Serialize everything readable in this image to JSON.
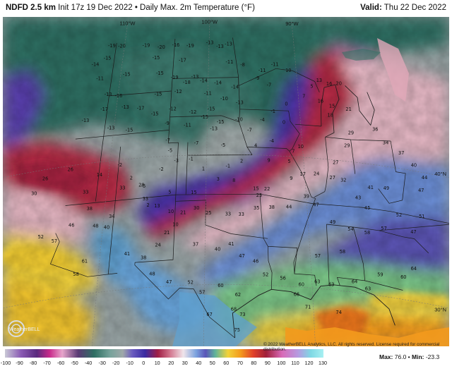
{
  "header": {
    "left_bold": "NDFD 2.5 km",
    "left_rest": " Init 17z 19 Dec 2022 • Daily Max. 2m Temperature (°F)",
    "valid_label": "Valid:",
    "valid_value": " Thu 22 Dec 2022"
  },
  "map": {
    "lon_labels": [
      "110°W",
      "100°W",
      "90°W"
    ],
    "lat_labels": [
      "40°N",
      "30°N"
    ],
    "colors": {
      "frigid_teal": "#2f6f63",
      "cold_gray": "#8e9b99",
      "purple": "#5a3fb0",
      "red": "#b62a45",
      "pink": "#e6b9c6",
      "blue": "#5a8fd6",
      "green": "#7fc98a",
      "yellow": "#f2d23a",
      "orange": "#f39a1d",
      "state_lines": "#222222"
    },
    "temperature_values": [
      {
        "v": "-19",
        "lon": -111.5,
        "lat": 48.7
      },
      {
        "v": "-20",
        "lon": -110.3,
        "lat": 48.6
      },
      {
        "v": "-19",
        "lon": -107.4,
        "lat": 48.5
      },
      {
        "v": "-20",
        "lon": -105.6,
        "lat": 48.3
      },
      {
        "v": "-16",
        "lon": -103.9,
        "lat": 48.4
      },
      {
        "v": "-19",
        "lon": -102.2,
        "lat": 48.3
      },
      {
        "v": "-13",
        "lon": -99.9,
        "lat": 48.5
      },
      {
        "v": "-13",
        "lon": -98.7,
        "lat": 48.2
      },
      {
        "v": "-13",
        "lon": -97.7,
        "lat": 48.4
      },
      {
        "v": "-15",
        "lon": -111.8,
        "lat": 47.8
      },
      {
        "v": "-14",
        "lon": -113.1,
        "lat": 47.4
      },
      {
        "v": "-15",
        "lon": -106.1,
        "lat": 47.5
      },
      {
        "v": "-17",
        "lon": -103.0,
        "lat": 47.2
      },
      {
        "v": "-11",
        "lon": -97.6,
        "lat": 47.0
      },
      {
        "v": "-8",
        "lon": -96.1,
        "lat": 46.8
      },
      {
        "v": "-11",
        "lon": -93.9,
        "lat": 46.4
      },
      {
        "v": "-11",
        "lon": -92.4,
        "lat": 46.9
      },
      {
        "v": "-9",
        "lon": -94.5,
        "lat": 45.8
      },
      {
        "v": "-7",
        "lon": -93.2,
        "lat": 45.3
      },
      {
        "v": "-11",
        "lon": -112.3,
        "lat": 46.3
      },
      {
        "v": "-15",
        "lon": -109.3,
        "lat": 46.4
      },
      {
        "v": "-15",
        "lon": -105.5,
        "lat": 46.3
      },
      {
        "v": "-19",
        "lon": -103.8,
        "lat": 45.9
      },
      {
        "v": "-13",
        "lon": -101.5,
        "lat": 45.9
      },
      {
        "v": "-18",
        "lon": -102.4,
        "lat": 45.5
      },
      {
        "v": "-14",
        "lon": -100.5,
        "lat": 45.6
      },
      {
        "v": "-14",
        "lon": -98.9,
        "lat": 45.4
      },
      {
        "v": "-14",
        "lon": -97.0,
        "lat": 45.1
      },
      {
        "v": "-13",
        "lon": -111.1,
        "lat": 45.0
      },
      {
        "v": "-16",
        "lon": -109.9,
        "lat": 44.8
      },
      {
        "v": "-15",
        "lon": -105.5,
        "lat": 44.7
      },
      {
        "v": "-12",
        "lon": -103.3,
        "lat": 44.8
      },
      {
        "v": "-11",
        "lon": -100.0,
        "lat": 44.6
      },
      {
        "v": "-10",
        "lon": -98.2,
        "lat": 44.2
      },
      {
        "v": "-13",
        "lon": -96.5,
        "lat": 43.9
      },
      {
        "v": "-17",
        "lon": -111.3,
        "lat": 43.9
      },
      {
        "v": "-13",
        "lon": -109.0,
        "lat": 43.9
      },
      {
        "v": "-17",
        "lon": -107.3,
        "lat": 43.7
      },
      {
        "v": "-15",
        "lon": -105.7,
        "lat": 43.2
      },
      {
        "v": "-12",
        "lon": -103.8,
        "lat": 43.5
      },
      {
        "v": "-12",
        "lon": -101.6,
        "lat": 43.2
      },
      {
        "v": "-15",
        "lon": -99.6,
        "lat": 43.4
      },
      {
        "v": "-10",
        "lon": -96.6,
        "lat": 42.6
      },
      {
        "v": "-13",
        "lon": -113.2,
        "lat": 43.2
      },
      {
        "v": "-13",
        "lon": -110.3,
        "lat": 42.4
      },
      {
        "v": "-15",
        "lon": -108.3,
        "lat": 42.1
      },
      {
        "v": "-9",
        "lon": -104.3,
        "lat": 42.4
      },
      {
        "v": "-11",
        "lon": -102.1,
        "lat": 42.2
      },
      {
        "v": "-15",
        "lon": -100.3,
        "lat": 42.8
      },
      {
        "v": "-15",
        "lon": -98.6,
        "lat": 42.4
      },
      {
        "v": "-13",
        "lon": -99.3,
        "lat": 41.9
      },
      {
        "v": "-4",
        "lon": -94.1,
        "lat": 42.6
      },
      {
        "v": "-7",
        "lon": -95.5,
        "lat": 41.8
      },
      {
        "v": "-4",
        "lon": -93.2,
        "lat": 41.0
      },
      {
        "v": "-1",
        "lon": -92.9,
        "lat": 43.3
      },
      {
        "v": "0",
        "lon": -91.4,
        "lat": 43.9
      },
      {
        "v": "0",
        "lon": -91.8,
        "lat": 42.5
      },
      {
        "v": "7",
        "lon": -89.4,
        "lat": 44.6
      },
      {
        "v": "5",
        "lon": -88.4,
        "lat": 45.4
      },
      {
        "v": "10",
        "lon": -90.9,
        "lat": 46.5
      },
      {
        "v": "13",
        "lon": -87.5,
        "lat": 45.9
      },
      {
        "v": "16",
        "lon": -86.4,
        "lat": 45.7
      },
      {
        "v": "20",
        "lon": -85.3,
        "lat": 45.8
      },
      {
        "v": "16",
        "lon": -87.6,
        "lat": 44.3
      },
      {
        "v": "18",
        "lon": -86.7,
        "lat": 43.3
      },
      {
        "v": "15",
        "lon": -86.4,
        "lat": 44.0
      },
      {
        "v": "21",
        "lon": -84.6,
        "lat": 43.9
      },
      {
        "v": "36",
        "lon": -82.0,
        "lat": 42.6
      },
      {
        "v": "29",
        "lon": -84.7,
        "lat": 42.1
      },
      {
        "v": "29",
        "lon": -85.3,
        "lat": 41.1
      },
      {
        "v": "27",
        "lon": -86.7,
        "lat": 39.7
      },
      {
        "v": "7",
        "lon": -91.0,
        "lat": 40.3
      },
      {
        "v": "10",
        "lon": -90.2,
        "lat": 40.7
      },
      {
        "v": "5",
        "lon": -91.5,
        "lat": 39.5
      },
      {
        "v": "9",
        "lon": -91.4,
        "lat": 38.2
      },
      {
        "v": "17",
        "lon": -90.2,
        "lat": 38.6
      },
      {
        "v": "24",
        "lon": -88.8,
        "lat": 38.7
      },
      {
        "v": "27",
        "lon": -87.2,
        "lat": 38.5
      },
      {
        "v": "32",
        "lon": -86.1,
        "lat": 38.4
      },
      {
        "v": "34",
        "lon": -81.1,
        "lat": 41.7
      },
      {
        "v": "37",
        "lon": -79.6,
        "lat": 41.1
      },
      {
        "v": "40",
        "lon": -78.5,
        "lat": 40.3
      },
      {
        "v": "44",
        "lon": -77.6,
        "lat": 39.5
      },
      {
        "v": "47",
        "lon": -78.2,
        "lat": 38.5
      },
      {
        "v": "49",
        "lon": -81.8,
        "lat": 38.2
      },
      {
        "v": "41",
        "lon": -83.4,
        "lat": 38.1
      },
      {
        "v": "43",
        "lon": -84.8,
        "lat": 37.2
      },
      {
        "v": "45",
        "lon": -84.0,
        "lat": 36.5
      },
      {
        "v": "52",
        "lon": -80.9,
        "lat": 36.3
      },
      {
        "v": "51",
        "lon": -78.6,
        "lat": 36.5
      },
      {
        "v": "47",
        "lon": -79.7,
        "lat": 35.2
      },
      {
        "v": "57",
        "lon": -82.6,
        "lat": 35.1
      },
      {
        "v": "58",
        "lon": -84.3,
        "lat": 34.6
      },
      {
        "v": "54",
        "lon": -85.9,
        "lat": 34.7
      },
      {
        "v": "49",
        "lon": -87.6,
        "lat": 35.1
      },
      {
        "v": "47",
        "lon": -89.1,
        "lat": 36.3
      },
      {
        "v": "39",
        "lon": -90.0,
        "lat": 36.9
      },
      {
        "v": "44",
        "lon": -91.8,
        "lat": 36.0
      },
      {
        "v": "38",
        "lon": -93.5,
        "lat": 35.9
      },
      {
        "v": "35",
        "lon": -95.0,
        "lat": 35.8
      },
      {
        "v": "33",
        "lon": -96.5,
        "lat": 35.3
      },
      {
        "v": "33",
        "lon": -97.8,
        "lat": 35.3
      },
      {
        "v": "25",
        "lon": -99.7,
        "lat": 35.4
      },
      {
        "v": "30",
        "lon": -100.9,
        "lat": 35.8
      },
      {
        "v": "21",
        "lon": -102.2,
        "lat": 35.5
      },
      {
        "v": "10",
        "lon": -103.4,
        "lat": 35.6
      },
      {
        "v": "10",
        "lon": -102.9,
        "lat": 34.6
      },
      {
        "v": "21",
        "lon": -103.7,
        "lat": 34.0
      },
      {
        "v": "24",
        "lon": -104.5,
        "lat": 33.1
      },
      {
        "v": "37",
        "lon": -100.9,
        "lat": 33.0
      },
      {
        "v": "40",
        "lon": -98.8,
        "lat": 32.6
      },
      {
        "v": "41",
        "lon": -97.5,
        "lat": 33.0
      },
      {
        "v": "47",
        "lon": -96.5,
        "lat": 32.1
      },
      {
        "v": "46",
        "lon": -95.2,
        "lat": 31.7
      },
      {
        "v": "52",
        "lon": -94.3,
        "lat": 30.7
      },
      {
        "v": "56",
        "lon": -92.7,
        "lat": 30.5
      },
      {
        "v": "60",
        "lon": -91.0,
        "lat": 30.1
      },
      {
        "v": "63",
        "lon": -89.5,
        "lat": 30.4
      },
      {
        "v": "63",
        "lon": -88.2,
        "lat": 30.3
      },
      {
        "v": "64",
        "lon": -86.0,
        "lat": 30.7
      },
      {
        "v": "63",
        "lon": -84.8,
        "lat": 30.3
      },
      {
        "v": "59",
        "lon": -83.5,
        "lat": 31.5
      },
      {
        "v": "58",
        "lon": -86.9,
        "lat": 32.9
      },
      {
        "v": "57",
        "lon": -89.3,
        "lat": 32.4
      },
      {
        "v": "60",
        "lon": -81.3,
        "lat": 31.6
      },
      {
        "v": "64",
        "lon": -80.2,
        "lat": 32.4
      },
      {
        "v": "38",
        "lon": -111.5,
        "lat": 36.4
      },
      {
        "v": "33",
        "lon": -108.4,
        "lat": 37.7
      },
      {
        "v": "28",
        "lon": -106.5,
        "lat": 37.8
      },
      {
        "v": "33",
        "lon": -106.0,
        "lat": 36.7
      },
      {
        "v": "34",
        "lon": -109.2,
        "lat": 35.6
      },
      {
        "v": "40",
        "lon": -109.6,
        "lat": 34.8
      },
      {
        "v": "48",
        "lon": -110.7,
        "lat": 35.0
      },
      {
        "v": "46",
        "lon": -113.1,
        "lat": 35.3
      },
      {
        "v": "57",
        "lon": -114.6,
        "lat": 34.3
      },
      {
        "v": "52",
        "lon": -116.0,
        "lat": 34.8
      },
      {
        "v": "61",
        "lon": -111.4,
        "lat": 32.4
      },
      {
        "v": "58",
        "lon": -112.1,
        "lat": 31.5
      },
      {
        "v": "41",
        "lon": -107.4,
        "lat": 32.6
      },
      {
        "v": "38",
        "lon": -105.8,
        "lat": 32.2
      },
      {
        "v": "48",
        "lon": -104.9,
        "lat": 30.9
      },
      {
        "v": "47",
        "lon": -103.3,
        "lat": 30.2
      },
      {
        "v": "52",
        "lon": -101.3,
        "lat": 30.1
      },
      {
        "v": "57",
        "lon": -100.2,
        "lat": 29.3
      },
      {
        "v": "60",
        "lon": -98.5,
        "lat": 29.8
      },
      {
        "v": "62",
        "lon": -96.9,
        "lat": 29.1
      },
      {
        "v": "68",
        "lon": -97.3,
        "lat": 28.0
      },
      {
        "v": "73",
        "lon": -96.5,
        "lat": 27.6
      },
      {
        "v": "75",
        "lon": -97.0,
        "lat": 26.4
      },
      {
        "v": "67",
        "lon": -99.5,
        "lat": 27.6
      },
      {
        "v": "71",
        "lon": -90.5,
        "lat": 28.4
      },
      {
        "v": "74",
        "lon": -87.7,
        "lat": 28.2
      },
      {
        "v": "66",
        "lon": -91.5,
        "lat": 29.3
      },
      {
        "v": "26",
        "lon": -116.5,
        "lat": 39.2
      },
      {
        "v": "30",
        "lon": -117.4,
        "lat": 38.2
      },
      {
        "v": "26",
        "lon": -114.0,
        "lat": 39.6
      },
      {
        "v": "33",
        "lon": -112.1,
        "lat": 37.7
      },
      {
        "v": "14",
        "lon": -110.9,
        "lat": 38.9
      },
      {
        "v": "-2",
        "lon": -108.9,
        "lat": 39.5
      },
      {
        "v": "2",
        "lon": -107.6,
        "lat": 38.4
      },
      {
        "v": "-5",
        "lon": -106.3,
        "lat": 37.7
      },
      {
        "v": "-2",
        "lon": -104.6,
        "lat": 38.9
      },
      {
        "v": "-3",
        "lon": -103.1,
        "lat": 39.5
      },
      {
        "v": "-1",
        "lon": -101.6,
        "lat": 39.6
      },
      {
        "v": "1",
        "lon": -100.3,
        "lat": 38.8
      },
      {
        "v": "3",
        "lon": -98.8,
        "lat": 38.0
      },
      {
        "v": "8",
        "lon": -97.2,
        "lat": 37.9
      },
      {
        "v": "-1",
        "lon": -97.8,
        "lat": 39.0
      },
      {
        "v": "2",
        "lon": -96.4,
        "lat": 39.4
      },
      {
        "v": "4",
        "lon": -94.9,
        "lat": 40.6
      },
      {
        "v": "9",
        "lon": -93.6,
        "lat": 39.5
      },
      {
        "v": "15",
        "lon": -95.0,
        "lat": 37.3
      },
      {
        "v": "22",
        "lon": -93.9,
        "lat": 37.3
      },
      {
        "v": "25",
        "lon": -94.7,
        "lat": 36.8
      },
      {
        "v": "-7",
        "lon": -104.1,
        "lat": 41.1
      },
      {
        "v": "-7",
        "lon": -101.1,
        "lat": 40.8
      },
      {
        "v": "-5",
        "lon": -98.3,
        "lat": 40.6
      },
      {
        "v": "-5",
        "lon": -103.8,
        "lat": 40.3
      },
      {
        "v": "2",
        "lon": -105.7,
        "lat": 36.2
      },
      {
        "v": "5",
        "lon": -103.6,
        "lat": 37.1
      },
      {
        "v": "13",
        "lon": -104.8,
        "lat": 36.1
      },
      {
        "v": "15",
        "lon": -101.2,
        "lat": 37.0
      }
    ]
  },
  "colorbar": {
    "ticks": [
      "-100",
      "-90",
      "-80",
      "-70",
      "-60",
      "-50",
      "-40",
      "-30",
      "-20",
      "-10",
      "0",
      "10",
      "20",
      "30",
      "40",
      "50",
      "60",
      "70",
      "80",
      "90",
      "100",
      "110",
      "120",
      "130"
    ]
  },
  "footer": {
    "copyright": "© 2022 WeatherBELL Analytics, LLC. All rights reserved. License required for commercial distribution.",
    "max_label": "Max:",
    "max_value": "76.0",
    "min_label": "Min:",
    "min_value": "-23.3"
  },
  "logo_text": "WeatherBELL"
}
